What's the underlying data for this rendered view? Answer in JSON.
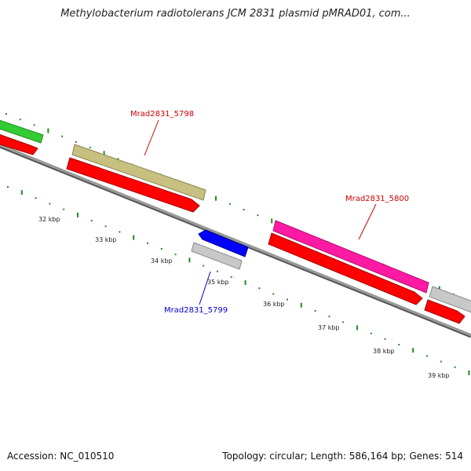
{
  "title": "Methylobacterium radiotolerans JCM 2831 plasmid pMRAD01, com...",
  "footer": {
    "accession": "Accession: NC_010510",
    "topology": "Topology: circular; Length: 586,164 bp; Genes: 514"
  },
  "scale_labels": [
    "32 kbp",
    "33 kbp",
    "34 kbp",
    "35 kbp",
    "36 kbp",
    "37 kbp",
    "38 kbp",
    "39 kbp"
  ],
  "gene_labels": [
    {
      "text": "Mrad2831_5798",
      "color": "#cc0000"
    },
    {
      "text": "Mrad2831_5800",
      "color": "#cc0000"
    },
    {
      "text": "Mrad2831_5799",
      "color": "#0000cc"
    }
  ],
  "colors": {
    "backbone": "#808080",
    "cds": "#ff0000",
    "olive_feature": "#c8c080",
    "magenta_feature": "#ff1aa3",
    "green_feature": "#33cc33",
    "gray_feature": "#c8c8c8",
    "blue_feature": "#0000ff",
    "tick_green": "#228B22"
  }
}
